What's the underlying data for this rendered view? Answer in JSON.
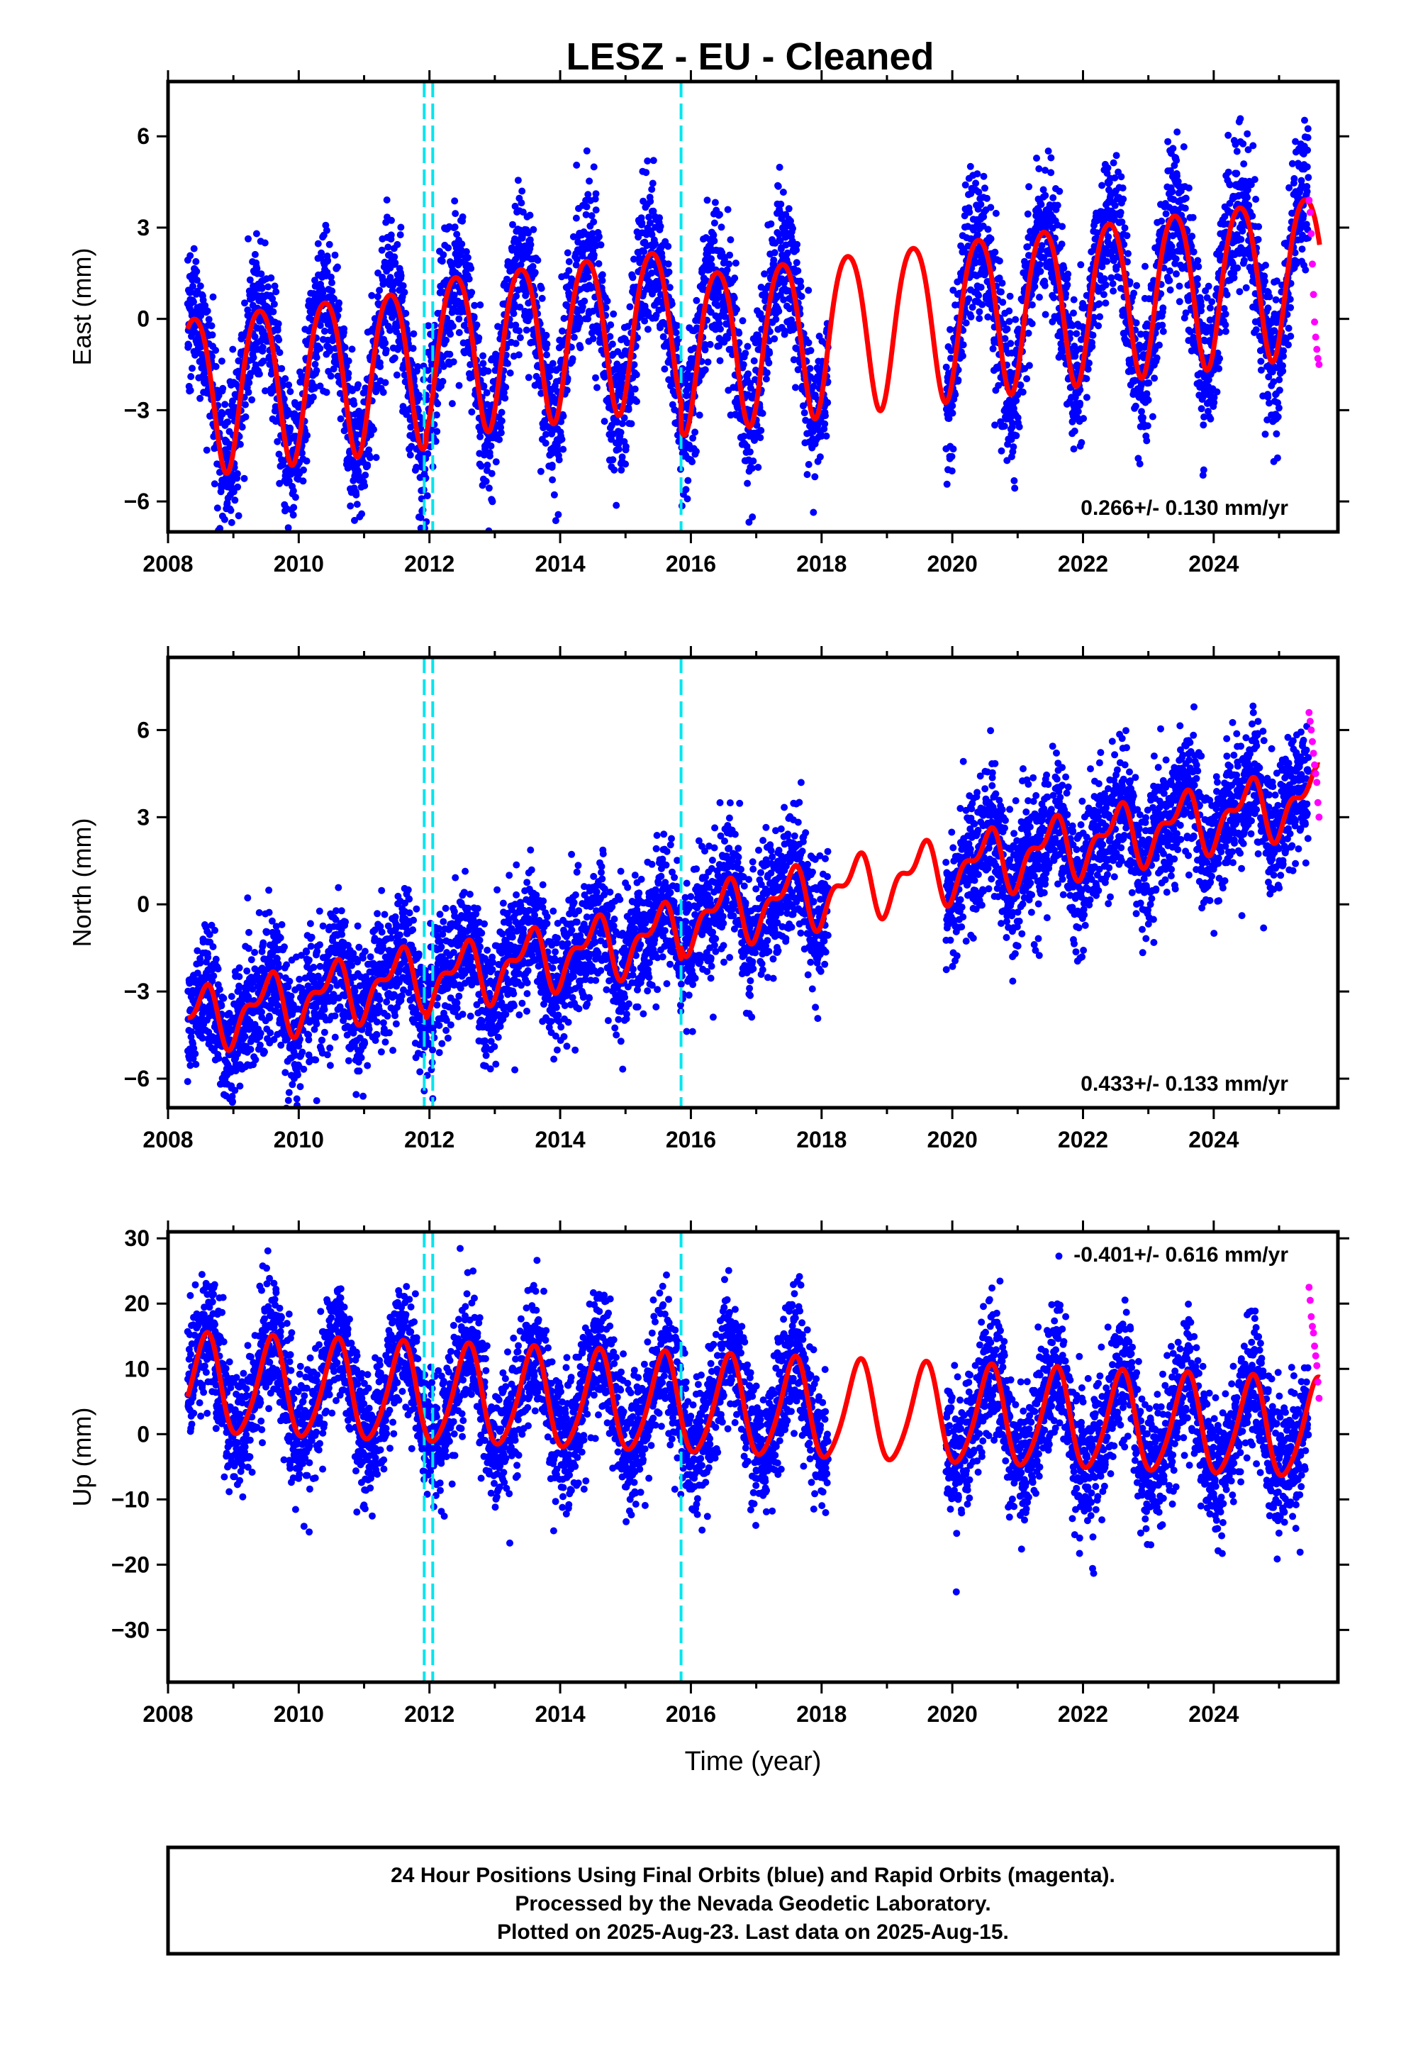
{
  "figure": {
    "title": "LESZ  - EU - Cleaned",
    "footer_lines": [
      "24 Hour Positions Using Final Orbits (blue) and Rapid Orbits (magenta).",
      "Processed by the Nevada Geodetic Laboratory.",
      "Plotted on 2025-Aug-23. Last data on 2025-Aug-15."
    ]
  },
  "chart_data": [
    {
      "type": "scatter",
      "ylabel": "East (mm)",
      "xlabel": "",
      "xlim": [
        2008,
        2025.9
      ],
      "ylim": [
        -7,
        7.8
      ],
      "xticks": [
        2008,
        2010,
        2012,
        2014,
        2016,
        2018,
        2020,
        2022,
        2024
      ],
      "yticks": [
        -6,
        -3,
        0,
        3,
        6
      ],
      "ytick_labels": [
        "−6",
        "−3",
        "0",
        "3",
        "6"
      ],
      "rate_label": "0.266+/- 0.130 mm/yr",
      "rate_position": "bottom-right",
      "trend_mm_per_yr": 0.266,
      "offset_mm": -0.05,
      "annual_amplitude_mm": 2.6,
      "annual_peak_phase": 0.4,
      "semiannual_amplitude_mm": 0.3,
      "scatter_sd_mm": 1.2,
      "data_start": 2008.3,
      "data_gap": [
        2018.1,
        2019.9
      ],
      "final_end": 2025.45,
      "rapid_end": 2025.62,
      "rapid_values": [
        3.9,
        3.5,
        2.8,
        1.8,
        0.8,
        -0.1,
        -0.6,
        -1.0,
        -1.3,
        -1.5
      ],
      "steps": [
        {
          "year": 2011.95,
          "mm": 0.3
        },
        {
          "year": 2015.85,
          "mm": -0.9
        }
      ],
      "offset_lines": [
        2011.92,
        2012.05,
        2015.85
      ],
      "colors": {
        "final": "#0000ff",
        "rapid": "#ff00ff",
        "model": "#ff0000",
        "offsets": "#00e5ee"
      }
    },
    {
      "type": "scatter",
      "ylabel": "North (mm)",
      "xlabel": "",
      "xlim": [
        2008,
        2025.9
      ],
      "ylim": [
        -7,
        8.5
      ],
      "xticks": [
        2008,
        2010,
        2012,
        2014,
        2016,
        2018,
        2020,
        2022,
        2024
      ],
      "yticks": [
        -6,
        -3,
        0,
        3,
        6
      ],
      "ytick_labels": [
        "−6",
        "−3",
        "0",
        "3",
        "6"
      ],
      "rate_label": "0.433+/- 0.133 mm/yr",
      "rate_position": "bottom-right",
      "trend_mm_per_yr": 0.433,
      "offset_mm": -0.3,
      "annual_amplitude_mm": 0.9,
      "annual_peak_phase": 0.5,
      "semiannual_amplitude_mm": 0.5,
      "scatter_sd_mm": 1.1,
      "data_start": 2008.3,
      "data_gap": [
        2018.1,
        2019.9
      ],
      "final_end": 2025.45,
      "rapid_end": 2025.62,
      "rapid_values": [
        6.6,
        6.3,
        6.0,
        5.6,
        5.2,
        4.8,
        4.5,
        4.2,
        3.5,
        3.0
      ],
      "steps": [
        {
          "year": 2011.95,
          "mm": -0.2
        },
        {
          "year": 2015.85,
          "mm": 0.4
        }
      ],
      "offset_lines": [
        2011.92,
        2012.05,
        2015.85
      ],
      "colors": {
        "final": "#0000ff",
        "rapid": "#ff00ff",
        "model": "#ff0000",
        "offsets": "#00e5ee"
      }
    },
    {
      "type": "scatter",
      "ylabel": "Up (mm)",
      "xlabel": "Time (year)",
      "xlim": [
        2008,
        2025.9
      ],
      "ylim": [
        -38,
        31
      ],
      "xticks": [
        2008,
        2010,
        2012,
        2014,
        2016,
        2018,
        2020,
        2022,
        2024
      ],
      "yticks": [
        -30,
        -20,
        -10,
        0,
        10,
        20,
        30
      ],
      "ytick_labels": [
        "−30",
        "−20",
        "−10",
        "0",
        "10",
        "20",
        "30"
      ],
      "rate_label": "-0.401+/- 0.616 mm/yr",
      "rate_position": "top-right",
      "trend_mm_per_yr": -0.401,
      "offset_mm": 4.0,
      "annual_amplitude_mm": 7.5,
      "annual_peak_phase": 0.58,
      "semiannual_amplitude_mm": 1.0,
      "scatter_sd_mm": 5.0,
      "data_start": 2008.3,
      "data_gap": [
        2018.1,
        2019.9
      ],
      "final_end": 2025.45,
      "rapid_end": 2025.62,
      "rapid_values": [
        22.5,
        20.5,
        18.0,
        16.5,
        15.5,
        13.5,
        12.0,
        10.5,
        8.0,
        5.5
      ],
      "steps": [
        {
          "year": 2011.95,
          "mm": 0.0
        },
        {
          "year": 2015.85,
          "mm": 0.0
        }
      ],
      "offset_lines": [
        2011.92,
        2012.05,
        2015.85
      ],
      "colors": {
        "final": "#0000ff",
        "rapid": "#ff00ff",
        "model": "#ff0000",
        "offsets": "#00e5ee"
      }
    }
  ]
}
